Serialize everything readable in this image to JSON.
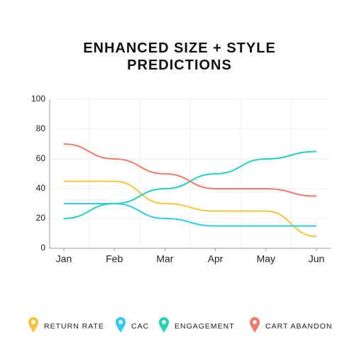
{
  "chart_data": {
    "type": "line",
    "title": "ENHANCED SIZE + STYLE PREDICTIONS",
    "categories": [
      "Jan",
      "Feb",
      "Mar",
      "Apr",
      "May",
      "Jun"
    ],
    "series": [
      {
        "name": "RETURN RATE",
        "color": "#f4c63d",
        "values": [
          45,
          45,
          30,
          25,
          25,
          8
        ]
      },
      {
        "name": "CAC",
        "color": "#2ccdf0",
        "values": [
          30,
          30,
          20,
          15,
          15,
          15
        ]
      },
      {
        "name": "ENGAGEMENT",
        "color": "#22d3b5",
        "values": [
          20,
          30,
          40,
          50,
          60,
          65
        ]
      },
      {
        "name": "CART ABANDON",
        "color": "#f47b68",
        "values": [
          70,
          60,
          50,
          40,
          40,
          35
        ]
      }
    ],
    "ylim": [
      0,
      100
    ],
    "yticks": [
      0,
      20,
      40,
      60,
      80,
      100
    ],
    "grid": true
  }
}
